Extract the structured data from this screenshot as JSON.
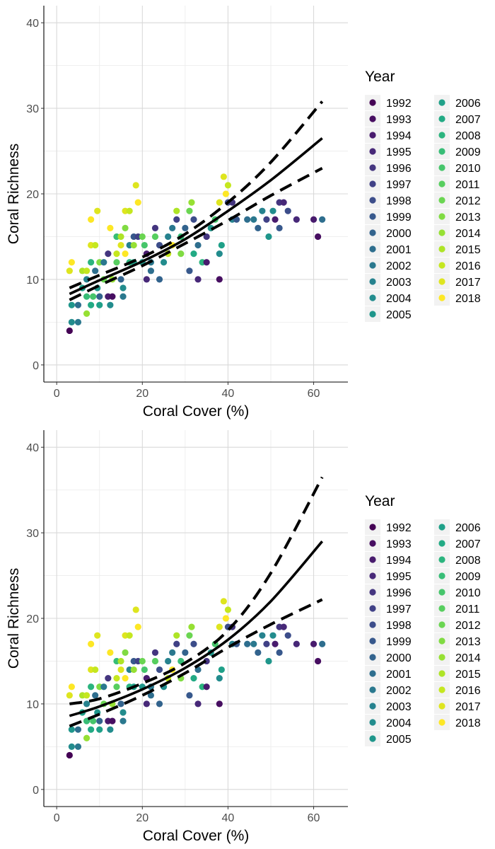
{
  "chart_data": [
    {
      "type": "scatter",
      "title": "",
      "xlabel": "Coral Cover (%)",
      "ylabel": "Coral Richness",
      "xlim": [
        -3,
        68
      ],
      "ylim": [
        -2,
        42
      ],
      "xticks": [
        0,
        20,
        40,
        60
      ],
      "yticks": [
        0,
        10,
        20,
        30,
        40
      ],
      "grid": true,
      "legend": {
        "title": "Year",
        "placement": "right"
      },
      "fit": {
        "mean": [
          [
            3,
            8.3
          ],
          [
            10,
            9.9
          ],
          [
            20,
            12.1
          ],
          [
            30,
            14.7
          ],
          [
            40,
            18.0
          ],
          [
            50,
            21.6
          ],
          [
            62,
            26.5
          ]
        ],
        "lower": [
          [
            3,
            7.6
          ],
          [
            10,
            9.3
          ],
          [
            20,
            11.6
          ],
          [
            30,
            14.2
          ],
          [
            40,
            16.9
          ],
          [
            50,
            19.8
          ],
          [
            62,
            23.0
          ]
        ],
        "upper": [
          [
            3,
            9.0
          ],
          [
            10,
            10.5
          ],
          [
            20,
            12.6
          ],
          [
            30,
            15.3
          ],
          [
            40,
            19.0
          ],
          [
            50,
            23.7
          ],
          [
            62,
            30.8
          ]
        ]
      }
    },
    {
      "type": "scatter",
      "title": "",
      "xlabel": "Coral Cover (%)",
      "ylabel": "Coral Richness",
      "xlim": [
        -3,
        68
      ],
      "ylim": [
        -2,
        42
      ],
      "xticks": [
        0,
        20,
        40,
        60
      ],
      "yticks": [
        0,
        10,
        20,
        30,
        40
      ],
      "grid": true,
      "legend": {
        "title": "Year",
        "placement": "right"
      },
      "fit": {
        "mean": [
          [
            3,
            8.6
          ],
          [
            10,
            9.7
          ],
          [
            20,
            11.7
          ],
          [
            30,
            14.2
          ],
          [
            40,
            17.5
          ],
          [
            50,
            22.0
          ],
          [
            62,
            29.0
          ]
        ],
        "lower": [
          [
            3,
            7.4
          ],
          [
            10,
            8.8
          ],
          [
            20,
            11.0
          ],
          [
            30,
            13.6
          ],
          [
            40,
            16.6
          ],
          [
            50,
            19.3
          ],
          [
            62,
            22.2
          ]
        ],
        "upper": [
          [
            3,
            10.0
          ],
          [
            10,
            10.6
          ],
          [
            20,
            12.4
          ],
          [
            30,
            14.8
          ],
          [
            40,
            18.6
          ],
          [
            50,
            25.3
          ],
          [
            62,
            36.5
          ]
        ]
      }
    }
  ],
  "legend_entries": [
    {
      "label": "1992",
      "color": "#440154"
    },
    {
      "label": "1993",
      "color": "#470E61"
    },
    {
      "label": "1994",
      "color": "#481B6D"
    },
    {
      "label": "1995",
      "color": "#472878"
    },
    {
      "label": "1996",
      "color": "#44357F"
    },
    {
      "label": "1997",
      "color": "#404186"
    },
    {
      "label": "1998",
      "color": "#3C4D8A"
    },
    {
      "label": "1999",
      "color": "#37588C"
    },
    {
      "label": "2000",
      "color": "#32638D"
    },
    {
      "label": "2001",
      "color": "#2E6E8E"
    },
    {
      "label": "2002",
      "color": "#2A788E"
    },
    {
      "label": "2003",
      "color": "#26828E"
    },
    {
      "label": "2004",
      "color": "#228C8D"
    },
    {
      "label": "2005",
      "color": "#1F968B"
    },
    {
      "label": "2006",
      "color": "#1FA088"
    },
    {
      "label": "2007",
      "color": "#22AA84"
    },
    {
      "label": "2008",
      "color": "#2BB47E"
    },
    {
      "label": "2009",
      "color": "#37BD76"
    },
    {
      "label": "2010",
      "color": "#46C56B"
    },
    {
      "label": "2011",
      "color": "#57CE5F"
    },
    {
      "label": "2012",
      "color": "#6AD551"
    },
    {
      "label": "2013",
      "color": "#80DB42"
    },
    {
      "label": "2014",
      "color": "#96E033"
    },
    {
      "label": "2015",
      "color": "#AEE426"
    },
    {
      "label": "2016",
      "color": "#C5E71F"
    },
    {
      "label": "2017",
      "color": "#DEE51F"
    },
    {
      "label": "2018",
      "color": "#FDE725"
    }
  ],
  "points": [
    {
      "x": 3,
      "y": 4,
      "year": "1992"
    },
    {
      "x": 3.5,
      "y": 5,
      "year": "2004"
    },
    {
      "x": 3.5,
      "y": 7,
      "year": "2005"
    },
    {
      "x": 5,
      "y": 5,
      "year": "2002"
    },
    {
      "x": 3,
      "y": 11,
      "year": "2017"
    },
    {
      "x": 3.5,
      "y": 12,
      "year": "2018"
    },
    {
      "x": 5,
      "y": 7,
      "year": "2001"
    },
    {
      "x": 6,
      "y": 9,
      "year": "2006"
    },
    {
      "x": 6,
      "y": 11,
      "year": "2015"
    },
    {
      "x": 7,
      "y": 6,
      "year": "2014"
    },
    {
      "x": 7,
      "y": 8,
      "year": "2009"
    },
    {
      "x": 7,
      "y": 10,
      "year": "2003"
    },
    {
      "x": 7,
      "y": 11,
      "year": "2016"
    },
    {
      "x": 8,
      "y": 7,
      "year": "2007"
    },
    {
      "x": 8,
      "y": 12,
      "year": "2008"
    },
    {
      "x": 8,
      "y": 14,
      "year": "2017"
    },
    {
      "x": 8,
      "y": 17,
      "year": "2018"
    },
    {
      "x": 8.5,
      "y": 8,
      "year": "2010"
    },
    {
      "x": 9,
      "y": 11,
      "year": "2001"
    },
    {
      "x": 9,
      "y": 14,
      "year": "2016"
    },
    {
      "x": 9.5,
      "y": 9,
      "year": "2005"
    },
    {
      "x": 9.5,
      "y": 18,
      "year": "2017"
    },
    {
      "x": 10,
      "y": 7,
      "year": "2006"
    },
    {
      "x": 10,
      "y": 12,
      "year": "2013"
    },
    {
      "x": 10,
      "y": 8,
      "year": "2000"
    },
    {
      "x": 11,
      "y": 12,
      "year": "2002"
    },
    {
      "x": 11,
      "y": 10,
      "year": "2012"
    },
    {
      "x": 12,
      "y": 8,
      "year": "1994"
    },
    {
      "x": 12,
      "y": 13,
      "year": "1996"
    },
    {
      "x": 12.5,
      "y": 7,
      "year": "2004"
    },
    {
      "x": 12.5,
      "y": 16,
      "year": "2018"
    },
    {
      "x": 13,
      "y": 10,
      "year": "2014"
    },
    {
      "x": 13,
      "y": 8,
      "year": "1993"
    },
    {
      "x": 14,
      "y": 15,
      "year": "2009"
    },
    {
      "x": 14,
      "y": 12,
      "year": "2011"
    },
    {
      "x": 14,
      "y": 13,
      "year": "2016"
    },
    {
      "x": 15,
      "y": 10,
      "year": "2000"
    },
    {
      "x": 15,
      "y": 15,
      "year": "2015"
    },
    {
      "x": 15,
      "y": 14,
      "year": "2017"
    },
    {
      "x": 15.5,
      "y": 8,
      "year": "2002"
    },
    {
      "x": 15.5,
      "y": 9,
      "year": "2004"
    },
    {
      "x": 16,
      "y": 13,
      "year": "2018"
    },
    {
      "x": 16,
      "y": 16,
      "year": "2013"
    },
    {
      "x": 16,
      "y": 18,
      "year": "2017"
    },
    {
      "x": 17,
      "y": 12,
      "year": "2008"
    },
    {
      "x": 17,
      "y": 14,
      "year": "2003"
    },
    {
      "x": 17,
      "y": 18,
      "year": "2016"
    },
    {
      "x": 18,
      "y": 15,
      "year": "1999"
    },
    {
      "x": 18,
      "y": 12,
      "year": "2006"
    },
    {
      "x": 18,
      "y": 14,
      "year": "2014"
    },
    {
      "x": 18.5,
      "y": 21,
      "year": "2017"
    },
    {
      "x": 19,
      "y": 15,
      "year": "1997"
    },
    {
      "x": 19,
      "y": 19,
      "year": "2018"
    },
    {
      "x": 20,
      "y": 12,
      "year": "2005"
    },
    {
      "x": 20,
      "y": 15,
      "year": "2012"
    },
    {
      "x": 20.5,
      "y": 14,
      "year": "2010"
    },
    {
      "x": 21,
      "y": 10,
      "year": "1995"
    },
    {
      "x": 21,
      "y": 13,
      "year": "1994"
    },
    {
      "x": 22,
      "y": 11,
      "year": "2001"
    },
    {
      "x": 22,
      "y": 12,
      "year": "2002"
    },
    {
      "x": 23,
      "y": 16,
      "year": "1996"
    },
    {
      "x": 23,
      "y": 15,
      "year": "2011"
    },
    {
      "x": 24,
      "y": 14,
      "year": "1998"
    },
    {
      "x": 24,
      "y": 10,
      "year": "2000"
    },
    {
      "x": 25,
      "y": 12,
      "year": "2004"
    },
    {
      "x": 26,
      "y": 15,
      "year": "2003"
    },
    {
      "x": 26,
      "y": 13,
      "year": "2016"
    },
    {
      "x": 27,
      "y": 14,
      "year": "2018"
    },
    {
      "x": 27,
      "y": 16,
      "year": "2002"
    },
    {
      "x": 28,
      "y": 17,
      "year": "1997"
    },
    {
      "x": 28,
      "y": 18,
      "year": "2015"
    },
    {
      "x": 29,
      "y": 15,
      "year": "2009"
    },
    {
      "x": 29,
      "y": 13,
      "year": "2013"
    },
    {
      "x": 30,
      "y": 16,
      "year": "2000"
    },
    {
      "x": 31,
      "y": 11,
      "year": "1999"
    },
    {
      "x": 31,
      "y": 18,
      "year": "2012"
    },
    {
      "x": 31.5,
      "y": 19,
      "year": "2014"
    },
    {
      "x": 32,
      "y": 13,
      "year": "2007"
    },
    {
      "x": 32,
      "y": 17,
      "year": "1998"
    },
    {
      "x": 33,
      "y": 10,
      "year": "1995"
    },
    {
      "x": 33,
      "y": 14,
      "year": "2001"
    },
    {
      "x": 34,
      "y": 12,
      "year": "2008"
    },
    {
      "x": 35,
      "y": 15,
      "year": "1996"
    },
    {
      "x": 35,
      "y": 12,
      "year": "1994"
    },
    {
      "x": 36,
      "y": 16,
      "year": "2005"
    },
    {
      "x": 37,
      "y": 17,
      "year": "2010"
    },
    {
      "x": 38,
      "y": 10,
      "year": "1993"
    },
    {
      "x": 38,
      "y": 13,
      "year": "2004"
    },
    {
      "x": 38.5,
      "y": 14,
      "year": "2006"
    },
    {
      "x": 38,
      "y": 19,
      "year": "2017"
    },
    {
      "x": 39,
      "y": 22,
      "year": "2017"
    },
    {
      "x": 39.5,
      "y": 20,
      "year": "2018"
    },
    {
      "x": 40,
      "y": 21,
      "year": "2016"
    },
    {
      "x": 40,
      "y": 19,
      "year": "1998"
    },
    {
      "x": 41,
      "y": 17,
      "year": "2003"
    },
    {
      "x": 41,
      "y": 19,
      "year": "1996"
    },
    {
      "x": 42,
      "y": 17,
      "year": "1999"
    },
    {
      "x": 44.5,
      "y": 17,
      "year": "2001"
    },
    {
      "x": 46,
      "y": 17,
      "year": "2002"
    },
    {
      "x": 47,
      "y": 16,
      "year": "2000"
    },
    {
      "x": 48,
      "y": 18,
      "year": "2003"
    },
    {
      "x": 49,
      "y": 17,
      "year": "1997"
    },
    {
      "x": 49.5,
      "y": 15,
      "year": "2005"
    },
    {
      "x": 50.5,
      "y": 18,
      "year": "2004"
    },
    {
      "x": 51,
      "y": 17,
      "year": "1994"
    },
    {
      "x": 52,
      "y": 19,
      "year": "1996"
    },
    {
      "x": 52,
      "y": 16,
      "year": "1999"
    },
    {
      "x": 53,
      "y": 19,
      "year": "1995"
    },
    {
      "x": 54,
      "y": 18,
      "year": "1998"
    },
    {
      "x": 56,
      "y": 17,
      "year": "1995"
    },
    {
      "x": 60,
      "y": 17,
      "year": "1994"
    },
    {
      "x": 61,
      "y": 15,
      "year": "1993"
    },
    {
      "x": 62,
      "y": 17,
      "year": "2001"
    }
  ]
}
